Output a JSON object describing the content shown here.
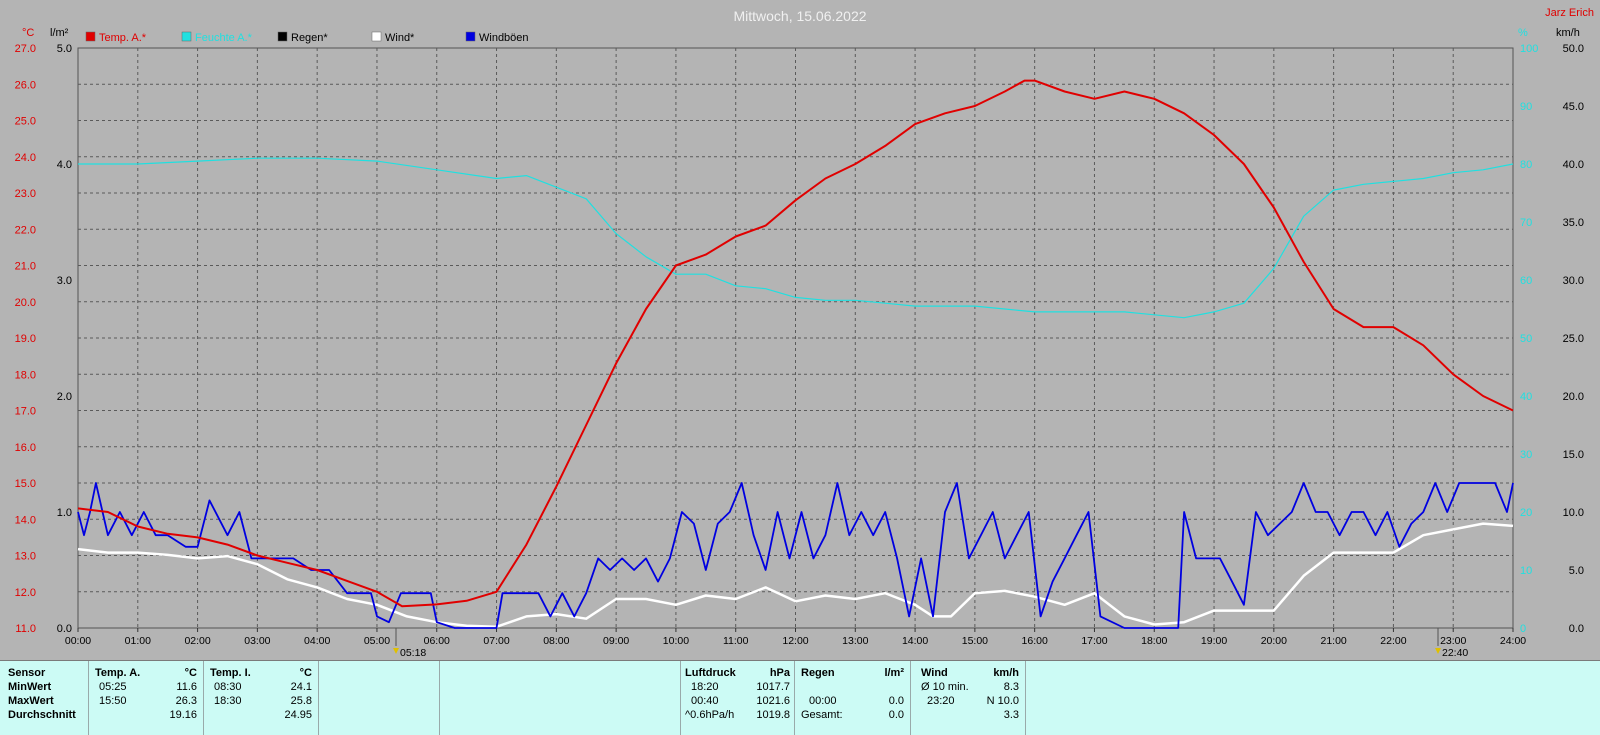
{
  "header": {
    "title": "Mittwoch, 15.06.2022",
    "station": "Jarz Erich",
    "unit_temp": "°C",
    "unit_rain": "l/m²",
    "unit_humidity": "%",
    "unit_wind": "km/h",
    "sunrise": "05:18",
    "sunset": "22:40"
  },
  "legend": [
    {
      "label": "Temp. A.*",
      "color": "#e00000"
    },
    {
      "label": "Feuchte A.*",
      "color": "#20e0e0"
    },
    {
      "label": "Regen*",
      "color": "#000000"
    },
    {
      "label": "Wind*",
      "color": "#ffffff"
    },
    {
      "label": "Windböen",
      "color": "#0000e0"
    }
  ],
  "chart_data": {
    "type": "line",
    "x_range_hours": [
      0,
      24
    ],
    "x_ticks": [
      "00:00",
      "01:00",
      "02:00",
      "03:00",
      "04:00",
      "05:00",
      "06:00",
      "07:00",
      "08:00",
      "09:00",
      "10:00",
      "11:00",
      "12:00",
      "13:00",
      "14:00",
      "15:00",
      "16:00",
      "17:00",
      "18:00",
      "19:00",
      "20:00",
      "21:00",
      "22:00",
      "23:00",
      "24:00"
    ],
    "temp_axis": {
      "range": [
        11.0,
        27.0
      ],
      "ticks": [
        "27.0",
        "26.0",
        "25.0",
        "24.0",
        "23.0",
        "22.0",
        "21.0",
        "20.0",
        "19.0",
        "18.0",
        "17.0",
        "16.0",
        "15.0",
        "14.0",
        "13.0",
        "12.0",
        "11.0"
      ]
    },
    "rain_axis": {
      "range": [
        0.0,
        5.0
      ],
      "ticks": [
        "5.0",
        "4.0",
        "3.0",
        "2.0",
        "1.0",
        "0.0"
      ]
    },
    "humidity_axis": {
      "range": [
        0,
        100
      ],
      "ticks": [
        "100",
        "90",
        "80",
        "70",
        "60",
        "50",
        "40",
        "30",
        "20",
        "10",
        "0"
      ]
    },
    "wind_axis": {
      "range": [
        0,
        50
      ],
      "ticks": [
        "50.0",
        "45.0",
        "40.0",
        "35.0",
        "30.0",
        "25.0",
        "20.0",
        "15.0",
        "10.0",
        "5.0",
        "0.0"
      ]
    },
    "series": [
      {
        "name": "Temp. A.*",
        "color": "#e00000",
        "axis": "temp",
        "points": [
          [
            0,
            14.3
          ],
          [
            0.5,
            14.2
          ],
          [
            1,
            13.8
          ],
          [
            1.5,
            13.6
          ],
          [
            2,
            13.5
          ],
          [
            2.5,
            13.3
          ],
          [
            3,
            13.0
          ],
          [
            3.5,
            12.8
          ],
          [
            4,
            12.6
          ],
          [
            4.5,
            12.3
          ],
          [
            5,
            12.0
          ],
          [
            5.42,
            11.6
          ],
          [
            6,
            11.65
          ],
          [
            6.5,
            11.75
          ],
          [
            7,
            12.0
          ],
          [
            7.5,
            13.3
          ],
          [
            8,
            14.9
          ],
          [
            8.5,
            16.6
          ],
          [
            9,
            18.3
          ],
          [
            9.5,
            19.8
          ],
          [
            10,
            21.0
          ],
          [
            10.5,
            21.3
          ],
          [
            11,
            21.8
          ],
          [
            11.5,
            22.1
          ],
          [
            12,
            22.8
          ],
          [
            12.5,
            23.4
          ],
          [
            13,
            23.8
          ],
          [
            13.5,
            24.3
          ],
          [
            14,
            24.9
          ],
          [
            14.5,
            25.2
          ],
          [
            15,
            25.4
          ],
          [
            15.5,
            25.8
          ],
          [
            15.83,
            26.1
          ],
          [
            16,
            26.1
          ],
          [
            16.5,
            25.8
          ],
          [
            17,
            25.6
          ],
          [
            17.5,
            25.8
          ],
          [
            18,
            25.6
          ],
          [
            18.5,
            25.2
          ],
          [
            19,
            24.6
          ],
          [
            19.5,
            23.8
          ],
          [
            20,
            22.6
          ],
          [
            20.5,
            21.1
          ],
          [
            21,
            19.8
          ],
          [
            21.5,
            19.3
          ],
          [
            22,
            19.3
          ],
          [
            22.5,
            18.8
          ],
          [
            23,
            18.0
          ],
          [
            23.5,
            17.4
          ],
          [
            24,
            17.0
          ]
        ]
      },
      {
        "name": "Feuchte A.*",
        "color": "#20e0e0",
        "axis": "humidity",
        "points": [
          [
            0,
            80
          ],
          [
            1,
            80
          ],
          [
            2,
            80.5
          ],
          [
            3,
            81
          ],
          [
            4,
            81
          ],
          [
            5,
            80.5
          ],
          [
            6,
            79
          ],
          [
            7,
            77.5
          ],
          [
            7.5,
            78
          ],
          [
            8,
            76
          ],
          [
            8.5,
            74
          ],
          [
            9,
            68
          ],
          [
            9.5,
            64
          ],
          [
            10,
            61
          ],
          [
            10.5,
            61
          ],
          [
            11,
            59
          ],
          [
            11.5,
            58.5
          ],
          [
            12,
            57
          ],
          [
            12.5,
            56.5
          ],
          [
            13,
            56.5
          ],
          [
            13.5,
            56
          ],
          [
            14,
            55.5
          ],
          [
            14.5,
            55.5
          ],
          [
            15,
            55.5
          ],
          [
            15.5,
            55
          ],
          [
            16,
            54.5
          ],
          [
            16.5,
            54.5
          ],
          [
            17,
            54.5
          ],
          [
            17.5,
            54.5
          ],
          [
            18,
            54
          ],
          [
            18.5,
            53.5
          ],
          [
            19,
            54.5
          ],
          [
            19.5,
            56
          ],
          [
            20,
            62
          ],
          [
            20.5,
            71
          ],
          [
            21,
            75.5
          ],
          [
            21.5,
            76.5
          ],
          [
            22,
            77
          ],
          [
            22.5,
            77.5
          ],
          [
            23,
            78.5
          ],
          [
            23.5,
            79
          ],
          [
            24,
            80
          ]
        ]
      },
      {
        "name": "Wind*",
        "color": "#ffffff",
        "axis": "wind",
        "points": [
          [
            0,
            6.8
          ],
          [
            0.5,
            6.5
          ],
          [
            1,
            6.5
          ],
          [
            1.5,
            6.3
          ],
          [
            2,
            6.0
          ],
          [
            2.5,
            6.2
          ],
          [
            3,
            5.5
          ],
          [
            3.5,
            4.2
          ],
          [
            4,
            3.5
          ],
          [
            4.5,
            2.5
          ],
          [
            5,
            2.0
          ],
          [
            5.5,
            1.0
          ],
          [
            6,
            0.5
          ],
          [
            6.5,
            0.2
          ],
          [
            7,
            0.1
          ],
          [
            7.5,
            1.0
          ],
          [
            8,
            1.2
          ],
          [
            8.5,
            0.8
          ],
          [
            9,
            2.5
          ],
          [
            9.5,
            2.5
          ],
          [
            10,
            2.0
          ],
          [
            10.5,
            2.8
          ],
          [
            11,
            2.5
          ],
          [
            11.5,
            3.5
          ],
          [
            12,
            2.3
          ],
          [
            12.5,
            2.8
          ],
          [
            13,
            2.5
          ],
          [
            13.5,
            3.0
          ],
          [
            14,
            2.0
          ],
          [
            14.3,
            1.0
          ],
          [
            14.6,
            1.0
          ],
          [
            15,
            3.0
          ],
          [
            15.5,
            3.2
          ],
          [
            16,
            2.7
          ],
          [
            16.5,
            2.0
          ],
          [
            17,
            3.0
          ],
          [
            17.5,
            1.0
          ],
          [
            18,
            0.3
          ],
          [
            18.5,
            0.5
          ],
          [
            19,
            1.5
          ],
          [
            19.5,
            1.5
          ],
          [
            20,
            1.5
          ],
          [
            20.5,
            4.5
          ],
          [
            21,
            6.5
          ],
          [
            21.5,
            6.5
          ],
          [
            22,
            6.5
          ],
          [
            22.5,
            8.0
          ],
          [
            23,
            8.5
          ],
          [
            23.5,
            9.0
          ],
          [
            24,
            8.8
          ]
        ]
      },
      {
        "name": "Windböen",
        "color": "#0000e0",
        "axis": "wind",
        "points": [
          [
            0,
            10
          ],
          [
            0.1,
            8
          ],
          [
            0.2,
            10
          ],
          [
            0.3,
            12.5
          ],
          [
            0.5,
            8
          ],
          [
            0.7,
            10
          ],
          [
            0.9,
            8
          ],
          [
            1.1,
            10
          ],
          [
            1.3,
            8
          ],
          [
            1.5,
            8
          ],
          [
            1.8,
            7
          ],
          [
            2.0,
            7
          ],
          [
            2.2,
            11
          ],
          [
            2.5,
            8
          ],
          [
            2.7,
            10
          ],
          [
            2.9,
            6
          ],
          [
            3.2,
            6
          ],
          [
            3.6,
            6
          ],
          [
            3.9,
            5
          ],
          [
            4.2,
            5
          ],
          [
            4.5,
            3
          ],
          [
            4.9,
            3
          ],
          [
            5.0,
            1
          ],
          [
            5.2,
            0.5
          ],
          [
            5.4,
            3
          ],
          [
            5.7,
            3
          ],
          [
            5.9,
            3
          ],
          [
            6.0,
            0.5
          ],
          [
            6.3,
            0
          ],
          [
            6.6,
            0
          ],
          [
            7.0,
            0
          ],
          [
            7.1,
            3
          ],
          [
            7.5,
            3
          ],
          [
            7.7,
            3
          ],
          [
            7.9,
            1
          ],
          [
            8.1,
            3
          ],
          [
            8.3,
            1
          ],
          [
            8.5,
            3
          ],
          [
            8.7,
            6
          ],
          [
            8.9,
            5
          ],
          [
            9.1,
            6
          ],
          [
            9.3,
            5
          ],
          [
            9.5,
            6
          ],
          [
            9.7,
            4
          ],
          [
            9.9,
            6
          ],
          [
            10.1,
            10
          ],
          [
            10.3,
            9
          ],
          [
            10.5,
            5
          ],
          [
            10.7,
            9
          ],
          [
            10.9,
            10
          ],
          [
            11.1,
            12.5
          ],
          [
            11.3,
            8
          ],
          [
            11.5,
            5
          ],
          [
            11.7,
            10
          ],
          [
            11.9,
            6
          ],
          [
            12.1,
            10
          ],
          [
            12.3,
            6
          ],
          [
            12.5,
            8
          ],
          [
            12.7,
            12.5
          ],
          [
            12.9,
            8
          ],
          [
            13.1,
            10
          ],
          [
            13.3,
            8
          ],
          [
            13.5,
            10
          ],
          [
            13.7,
            6
          ],
          [
            13.9,
            1
          ],
          [
            14.1,
            6
          ],
          [
            14.3,
            1
          ],
          [
            14.5,
            10
          ],
          [
            14.7,
            12.5
          ],
          [
            14.9,
            6
          ],
          [
            15.1,
            8
          ],
          [
            15.3,
            10
          ],
          [
            15.5,
            6
          ],
          [
            15.7,
            8
          ],
          [
            15.9,
            10
          ],
          [
            16.1,
            1
          ],
          [
            16.3,
            4
          ],
          [
            16.5,
            6
          ],
          [
            16.7,
            8
          ],
          [
            16.9,
            10
          ],
          [
            17.1,
            1
          ],
          [
            17.5,
            0
          ],
          [
            18.0,
            0
          ],
          [
            18.4,
            0
          ],
          [
            18.5,
            10
          ],
          [
            18.7,
            6
          ],
          [
            18.9,
            6
          ],
          [
            19.1,
            6
          ],
          [
            19.3,
            4
          ],
          [
            19.5,
            2
          ],
          [
            19.7,
            10
          ],
          [
            19.9,
            8
          ],
          [
            20.1,
            9
          ],
          [
            20.3,
            10
          ],
          [
            20.5,
            12.5
          ],
          [
            20.7,
            10
          ],
          [
            20.9,
            10
          ],
          [
            21.1,
            8
          ],
          [
            21.3,
            10
          ],
          [
            21.5,
            10
          ],
          [
            21.7,
            8
          ],
          [
            21.9,
            10
          ],
          [
            22.1,
            7
          ],
          [
            22.3,
            9
          ],
          [
            22.5,
            10
          ],
          [
            22.7,
            12.5
          ],
          [
            22.9,
            10
          ],
          [
            23.1,
            12.5
          ],
          [
            23.3,
            12.5
          ],
          [
            23.5,
            12.5
          ],
          [
            23.7,
            12.5
          ],
          [
            23.9,
            10
          ],
          [
            24,
            12.5
          ]
        ]
      }
    ]
  },
  "table": {
    "row_labels": [
      "Sensor",
      "MinWert",
      "MaxWert",
      "Durchschnitt"
    ],
    "temp_a": {
      "title": "Temp. A.",
      "unit": "°C",
      "min_time": "05:25",
      "min": "11.6",
      "max_time": "15:50",
      "max": "26.3",
      "avg": "19.16"
    },
    "temp_i": {
      "title": "Temp. I.",
      "unit": "°C",
      "min_time": "08:30",
      "min": "24.1",
      "max_time": "18:30",
      "max": "25.8",
      "avg": "24.95"
    },
    "pressure": {
      "title": "Luftdruck",
      "unit": "hPa",
      "min_time": "18:20",
      "min": "1017.7",
      "max_time": "00:40",
      "max": "1021.6",
      "trend_label": "^0.6hPa/h",
      "avg": "1019.8"
    },
    "rain": {
      "title": "Regen",
      "unit": "l/m²",
      "max_time": "00:00",
      "max": "0.0",
      "total_label": "Gesamt:",
      "total": "0.0"
    },
    "wind": {
      "title": "Wind",
      "unit": "km/h",
      "avg10_label": "Ø 10 min.",
      "avg10": "8.3",
      "max_time": "23:20",
      "max": "N 10.0",
      "avg": "3.3"
    }
  }
}
